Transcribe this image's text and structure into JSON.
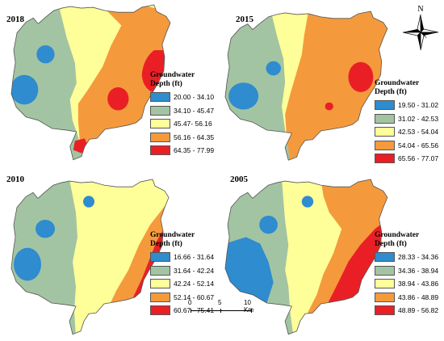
{
  "map": {
    "colors": {
      "class1": "#2e8ccf",
      "class2": "#a3c4a2",
      "class3": "#ffff99",
      "class4": "#f59a3c",
      "class5": "#ea1f26",
      "boundary": "#555555"
    },
    "legend_title": "Groundwater Depth (ft)",
    "panels": [
      {
        "year": "2018",
        "classes": [
          "20.00 - 34.10",
          "34.10 - 45.47",
          "45.47- 56.16",
          "56.16 - 64.35",
          "64.35 - 77.99"
        ]
      },
      {
        "year": "2015",
        "classes": [
          "19.50 - 31.02",
          "31.02 - 42.53",
          "42.53 - 54.04",
          "54.04 - 65.56",
          "65.56 - 77.07"
        ]
      },
      {
        "year": "2010",
        "classes": [
          "16.66 - 31.64",
          "31.64 - 42.24",
          "42.24 - 52.14",
          "52.14 - 60.67",
          "60.67 - 75.41"
        ]
      },
      {
        "year": "2005",
        "classes": [
          "28.33 - 34.36",
          "34.36 - 38.94",
          "38.94 - 43.86",
          "43.86 - 48.89",
          "48.89 - 56.82"
        ]
      }
    ],
    "north_arrow": {
      "label": "N",
      "icon": "compass-rose-icon"
    },
    "scale_bar": {
      "labels": [
        "0",
        "5",
        "10 Km"
      ]
    }
  }
}
